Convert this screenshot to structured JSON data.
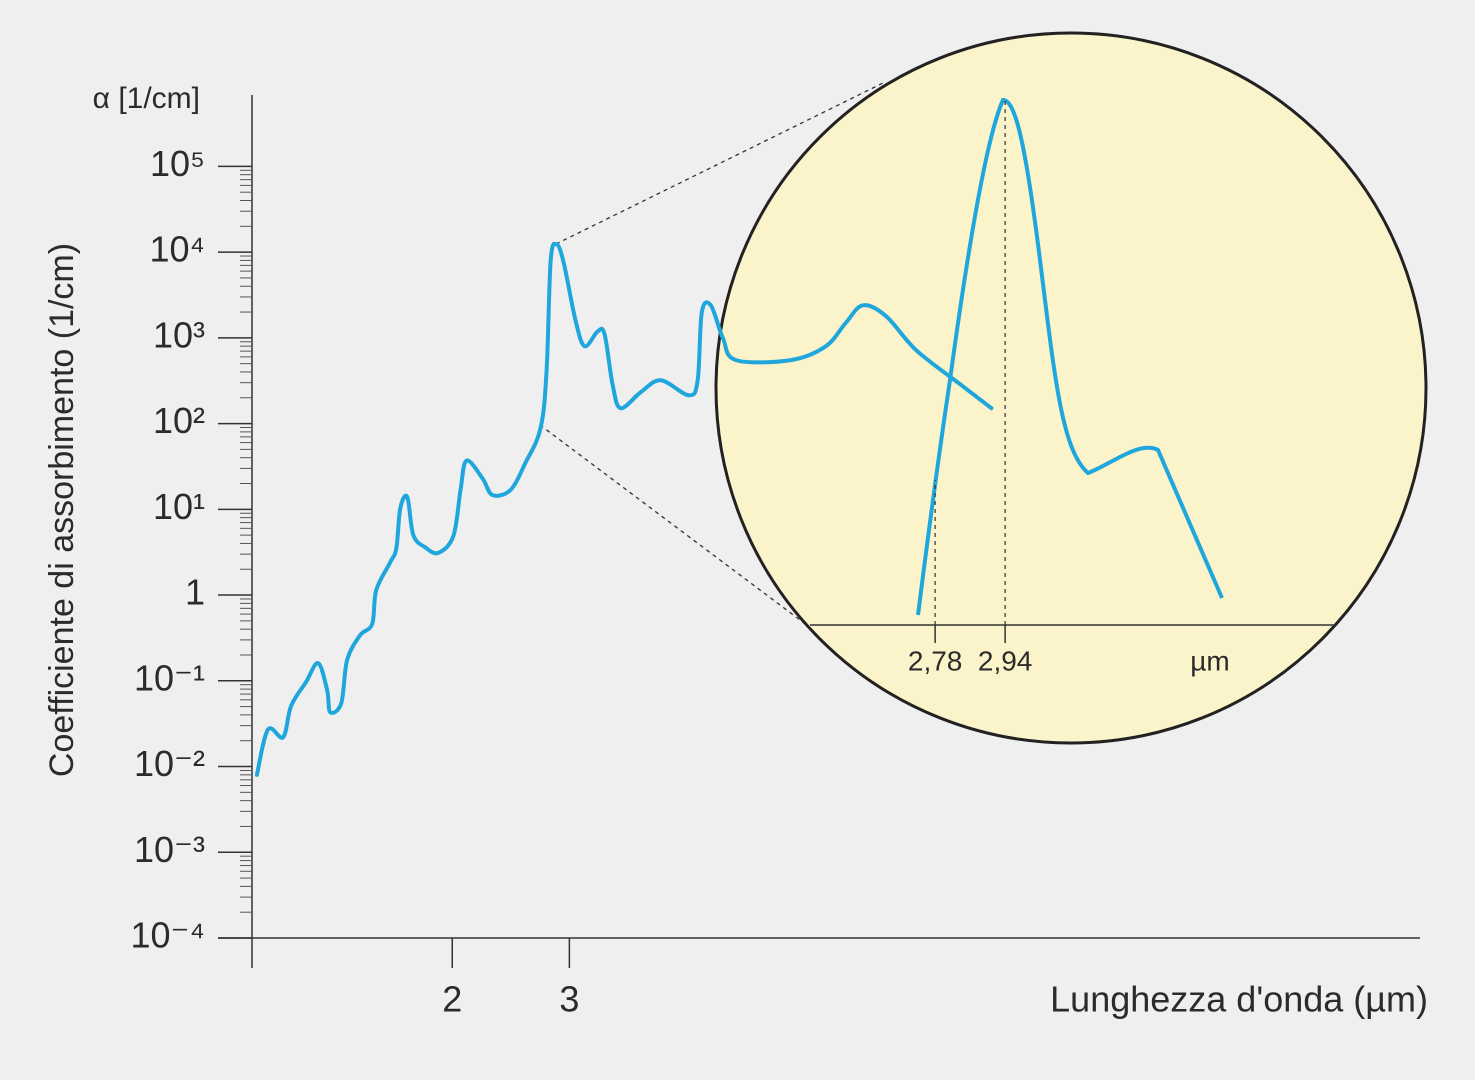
{
  "chart_data": {
    "type": "line",
    "y_label_top": "α [1/cm]",
    "y_label": "Coefficiente di assorbimento (1/cm)",
    "x_label": "Lunghezza d'onda (µm)",
    "log_x": true,
    "log_y": true,
    "minor_ticks": true,
    "xlim": [
      1,
      57
    ],
    "ylim": [
      0.0001,
      680000
    ],
    "xticks": [
      2,
      3
    ],
    "yticks": [
      {
        "value": 0.0001,
        "label": "10⁻⁴"
      },
      {
        "value": 0.001,
        "label": "10⁻³"
      },
      {
        "value": 0.01,
        "label": "10⁻²"
      },
      {
        "value": 0.1,
        "label": "10⁻¹"
      },
      1,
      {
        "value": 10,
        "label": "10¹"
      },
      {
        "value": 100,
        "label": "10²"
      },
      {
        "value": 1000,
        "label": "10³"
      },
      {
        "value": 10000,
        "label": "10⁴"
      },
      {
        "value": 100000,
        "label": "10⁵"
      }
    ],
    "series": [
      {
        "color": "#1fa6dc",
        "x": [
          1.017,
          1.057,
          1.114,
          1.145,
          1.206,
          1.257,
          1.297,
          1.311,
          1.362,
          1.39,
          1.454,
          1.516,
          1.537,
          1.613,
          1.648,
          1.671,
          1.712,
          1.748,
          1.822,
          1.905,
          2.008,
          2.058,
          2.101,
          2.221,
          2.298,
          2.447,
          2.577,
          2.715,
          2.773,
          2.812,
          2.87,
          2.941,
          3.064,
          3.162,
          3.309,
          3.389,
          3.485,
          3.583,
          3.84,
          4.117,
          4.536,
          4.677,
          4.744,
          4.895,
          5.104,
          5.339,
          6.457,
          7.29,
          7.82,
          8.29,
          8.98,
          9.97,
          11.65,
          12.93
        ],
        "values": [
          0.008,
          0.027,
          0.022,
          0.051,
          0.097,
          0.161,
          0.078,
          0.043,
          0.055,
          0.175,
          0.34,
          0.46,
          1.14,
          2.4,
          3.5,
          10.3,
          13.9,
          5.0,
          3.6,
          3.1,
          4.9,
          16.7,
          37,
          23,
          14.7,
          16.8,
          35,
          88,
          420,
          8000,
          12300,
          7600,
          1600,
          800,
          1190,
          1100,
          280,
          151,
          232,
          320,
          214,
          320,
          1990,
          2400,
          990,
          550,
          550,
          800,
          1520,
          2400,
          1790,
          716,
          281,
          151
        ]
      }
    ],
    "inset": {
      "xlim": [
        2.494,
        3.694
      ],
      "xticks": [
        {
          "value": 2.78,
          "label": "2,78"
        },
        {
          "value": 2.94,
          "label": "2,94"
        }
      ],
      "unit": "µm"
    }
  }
}
